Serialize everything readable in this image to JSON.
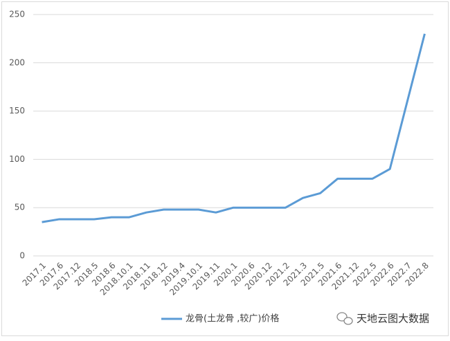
{
  "chart_data": {
    "type": "line",
    "categories": [
      "2017.1",
      "2017.6",
      "2017.12",
      "2018.5",
      "2018.6",
      "2018.10.1",
      "2018.11",
      "2018.12",
      "2019.4",
      "2019.10.1",
      "2019.11",
      "2020.1",
      "2020.6",
      "2020.12",
      "2021.2",
      "2021.3",
      "2021.5",
      "2021.6",
      "2021.12",
      "2022.5",
      "2022.6",
      "2022.7",
      "2022.8"
    ],
    "series": [
      {
        "name": "龙骨(土龙骨 ,较广)价格",
        "color": "#5b9bd5",
        "values": [
          35,
          38,
          38,
          38,
          40,
          40,
          45,
          48,
          48,
          48,
          45,
          50,
          50,
          50,
          50,
          60,
          65,
          80,
          80,
          80,
          90,
          160,
          230
        ]
      }
    ],
    "ylim": [
      0,
      250
    ],
    "yticks": [
      0,
      50,
      100,
      150,
      200,
      250
    ],
    "grid": true,
    "legend": "bottom",
    "watermark": "天地云图大数据"
  }
}
